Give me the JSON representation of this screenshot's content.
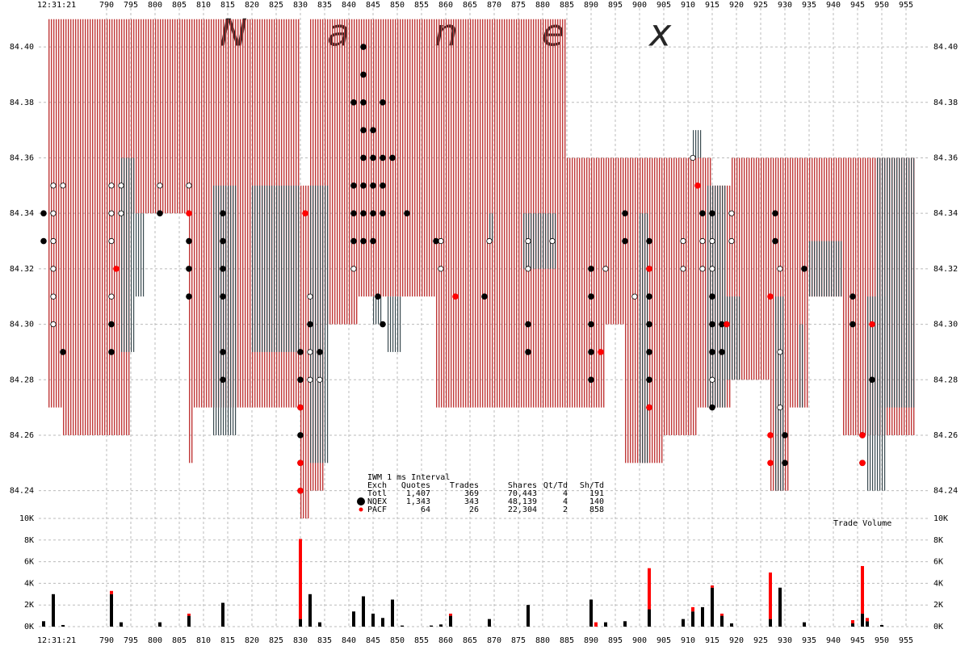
{
  "chart_data": {
    "type": "tick",
    "time_label": "12:31:21",
    "watermark": [
      "N",
      "a",
      "n",
      "e",
      "x"
    ],
    "watermark_colors": [
      "#b7a0cc",
      "#b7a0cc",
      "#b39ad0",
      "#a890dd",
      "#8f8ff0"
    ],
    "xlim": [
      776,
      958
    ],
    "xticks": [
      790,
      795,
      800,
      805,
      810,
      815,
      820,
      825,
      830,
      835,
      840,
      845,
      850,
      855,
      860,
      865,
      870,
      875,
      880,
      885,
      890,
      895,
      900,
      905,
      910,
      915,
      920,
      925,
      930,
      935,
      940,
      945,
      950,
      955
    ],
    "ylim": [
      84.23,
      84.414
    ],
    "yticks": [
      {
        "value": 84.24,
        "label": "84.24"
      },
      {
        "value": 84.26,
        "label": "84.26"
      },
      {
        "value": 84.28,
        "label": "84.28"
      },
      {
        "value": 84.3,
        "label": "84.30"
      },
      {
        "value": 84.32,
        "label": "84.32"
      },
      {
        "value": 84.34,
        "label": "84.34"
      },
      {
        "value": 84.36,
        "label": "84.36"
      },
      {
        "value": 84.38,
        "label": "84.38"
      },
      {
        "value": 84.4,
        "label": "84.40"
      }
    ],
    "vol_lim": [
      0,
      10000
    ],
    "vol_ticks": [
      {
        "value": 0,
        "label": "0K"
      },
      {
        "value": 2000,
        "label": "2K"
      },
      {
        "value": 4000,
        "label": "4K"
      },
      {
        "value": 6000,
        "label": "6K"
      },
      {
        "value": 8000,
        "label": "8K"
      },
      {
        "value": 10000,
        "label": "10K"
      }
    ],
    "vol_title": "Trade Volume",
    "grid": true,
    "spread": {
      "color": "#c03838",
      "x0": [
        778,
        781,
        795,
        807,
        808,
        830,
        832,
        835,
        842,
        858,
        885,
        893,
        897,
        905,
        912,
        915,
        919,
        927,
        931,
        935,
        942,
        949
      ],
      "x1": [
        781,
        795,
        807,
        808,
        830,
        832,
        835,
        842,
        858,
        885,
        893,
        897,
        905,
        912,
        915,
        919,
        927,
        931,
        935,
        942,
        949,
        957
      ],
      "bid": [
        84.27,
        84.26,
        84.34,
        84.25,
        84.27,
        84.23,
        84.24,
        84.3,
        84.31,
        84.27,
        84.27,
        84.3,
        84.25,
        84.26,
        84.27,
        84.27,
        84.28,
        84.24,
        84.27,
        84.31,
        84.26,
        84.26
      ],
      "ask": [
        84.41,
        84.41,
        84.41,
        84.41,
        84.41,
        84.35,
        84.41,
        84.41,
        84.41,
        84.41,
        84.36,
        84.36,
        84.36,
        84.36,
        84.36,
        84.35,
        84.36,
        84.36,
        84.36,
        84.36,
        84.36,
        84.36
      ]
    },
    "locked": {
      "color": "#3a4a50",
      "x0": [
        793,
        796,
        812,
        820,
        832,
        845,
        848,
        869,
        876,
        900,
        911,
        914,
        917,
        928,
        933,
        935,
        947,
        949
      ],
      "x1": [
        796,
        798,
        817,
        830,
        836,
        847,
        851,
        870,
        883,
        902,
        913,
        918,
        921,
        930,
        934,
        942,
        951,
        957
      ],
      "bid": [
        84.29,
        84.31,
        84.26,
        84.29,
        84.25,
        84.3,
        84.29,
        84.33,
        84.32,
        84.25,
        84.36,
        84.27,
        84.28,
        84.24,
        84.27,
        84.31,
        84.24,
        84.27
      ],
      "ask": [
        84.36,
        84.34,
        84.35,
        84.35,
        84.35,
        84.31,
        84.31,
        84.34,
        84.34,
        84.34,
        84.37,
        84.35,
        84.31,
        84.31,
        84.3,
        84.33,
        84.31,
        84.36
      ]
    },
    "series": [
      {
        "color": "#ffffff",
        "x": [
          779,
          781,
          779,
          779,
          779,
          779,
          779,
          791,
          793,
          791,
          793,
          791,
          791,
          801,
          807,
          832,
          832,
          832,
          834,
          832,
          841,
          859,
          859,
          869,
          877,
          877,
          882,
          893,
          899,
          909,
          909,
          911,
          913,
          913,
          915,
          915,
          915,
          919,
          919,
          929,
          929,
          929
        ],
        "values": [
          84.35,
          84.35,
          84.34,
          84.33,
          84.32,
          84.31,
          84.3,
          84.35,
          84.35,
          84.34,
          84.34,
          84.33,
          84.31,
          84.35,
          84.35,
          84.31,
          84.3,
          84.28,
          84.28,
          84.29,
          84.32,
          84.33,
          84.32,
          84.33,
          84.33,
          84.32,
          84.33,
          84.32,
          84.31,
          84.33,
          84.32,
          84.36,
          84.33,
          84.32,
          84.33,
          84.32,
          84.28,
          84.34,
          84.33,
          84.32,
          84.29,
          84.27
        ]
      },
      {
        "name": "NQEX",
        "color": "#000000",
        "x": [
          777,
          777,
          781,
          791,
          791,
          801,
          807,
          807,
          807,
          814,
          814,
          814,
          814,
          814,
          814,
          830,
          830,
          830,
          830,
          830,
          830,
          832,
          834,
          841,
          841,
          841,
          841,
          843,
          843,
          843,
          843,
          843,
          843,
          843,
          843,
          845,
          845,
          845,
          845,
          845,
          847,
          847,
          847,
          847,
          849,
          846,
          847,
          852,
          858,
          868,
          877,
          877,
          890,
          890,
          890,
          890,
          890,
          897,
          897,
          902,
          902,
          902,
          902,
          902,
          902,
          902,
          913,
          915,
          915,
          915,
          915,
          915,
          917,
          917,
          928,
          928,
          930,
          930,
          934,
          944,
          944,
          946,
          946,
          948
        ],
        "values": [
          84.34,
          84.33,
          84.29,
          84.3,
          84.29,
          84.34,
          84.33,
          84.32,
          84.31,
          84.34,
          84.33,
          84.32,
          84.31,
          84.29,
          84.28,
          84.29,
          84.28,
          84.27,
          84.26,
          84.25,
          84.24,
          84.3,
          84.29,
          84.35,
          84.34,
          84.33,
          84.38,
          84.4,
          84.39,
          84.38,
          84.37,
          84.36,
          84.35,
          84.34,
          84.33,
          84.37,
          84.36,
          84.35,
          84.34,
          84.33,
          84.38,
          84.36,
          84.35,
          84.34,
          84.36,
          84.31,
          84.3,
          84.34,
          84.33,
          84.31,
          84.3,
          84.29,
          84.32,
          84.31,
          84.3,
          84.29,
          84.28,
          84.34,
          84.33,
          84.33,
          84.32,
          84.31,
          84.3,
          84.29,
          84.28,
          84.27,
          84.34,
          84.31,
          84.3,
          84.29,
          84.27,
          84.34,
          84.3,
          84.29,
          84.34,
          84.33,
          84.26,
          84.25,
          84.32,
          84.31,
          84.3,
          84.26,
          84.25,
          84.28
        ]
      },
      {
        "name": "PACF",
        "color": "#ff0000",
        "x": [
          792,
          807,
          830,
          830,
          830,
          831,
          862,
          892,
          902,
          902,
          912,
          918,
          927,
          927,
          927,
          946,
          946,
          948
        ],
        "values": [
          84.32,
          84.34,
          84.27,
          84.25,
          84.24,
          84.34,
          84.31,
          84.29,
          84.32,
          84.27,
          84.35,
          84.3,
          84.31,
          84.26,
          84.25,
          84.26,
          84.25,
          84.3
        ]
      }
    ],
    "volume": {
      "x": [
        777,
        779,
        781,
        791,
        793,
        801,
        807,
        814,
        830,
        832,
        834,
        841,
        843,
        845,
        847,
        849,
        851,
        857,
        859,
        861,
        869,
        877,
        890,
        891,
        893,
        897,
        902,
        909,
        911,
        913,
        915,
        917,
        919,
        927,
        929,
        934,
        944,
        946,
        947,
        950
      ],
      "series": [
        {
          "name": "NQEX",
          "color": "#000000",
          "values": [
            500,
            3000,
            150,
            3000,
            400,
            400,
            1000,
            2200,
            700,
            3000,
            400,
            1400,
            2800,
            1200,
            800,
            2500,
            100,
            100,
            200,
            1000,
            700,
            2000,
            2500,
            0,
            400,
            500,
            1600,
            700,
            1400,
            1800,
            3600,
            1000,
            300,
            700,
            3600,
            400,
            300,
            1200,
            500,
            150
          ]
        },
        {
          "name": "PACF",
          "color": "#ff0000",
          "values": [
            0,
            0,
            0,
            300,
            0,
            0,
            200,
            0,
            7400,
            0,
            0,
            0,
            0,
            0,
            0,
            0,
            0,
            0,
            0,
            200,
            0,
            0,
            0,
            400,
            0,
            0,
            3800,
            0,
            400,
            0,
            200,
            200,
            0,
            4300,
            0,
            0,
            300,
            4400,
            300,
            0
          ]
        }
      ]
    },
    "table": {
      "title": "IWM 1 ms Interval",
      "header": [
        "Exch",
        "Quotes",
        "Trades",
        "Shares",
        "Qt/Td",
        "Sh/Td"
      ],
      "rows": [
        [
          "Totl",
          "1,407",
          "369",
          "70,443",
          "4",
          "191"
        ],
        [
          "NQEX",
          "1,343",
          "343",
          "48,139",
          "4",
          "140"
        ],
        [
          "PACF",
          "64",
          "26",
          "22,304",
          "2",
          "858"
        ]
      ]
    }
  }
}
